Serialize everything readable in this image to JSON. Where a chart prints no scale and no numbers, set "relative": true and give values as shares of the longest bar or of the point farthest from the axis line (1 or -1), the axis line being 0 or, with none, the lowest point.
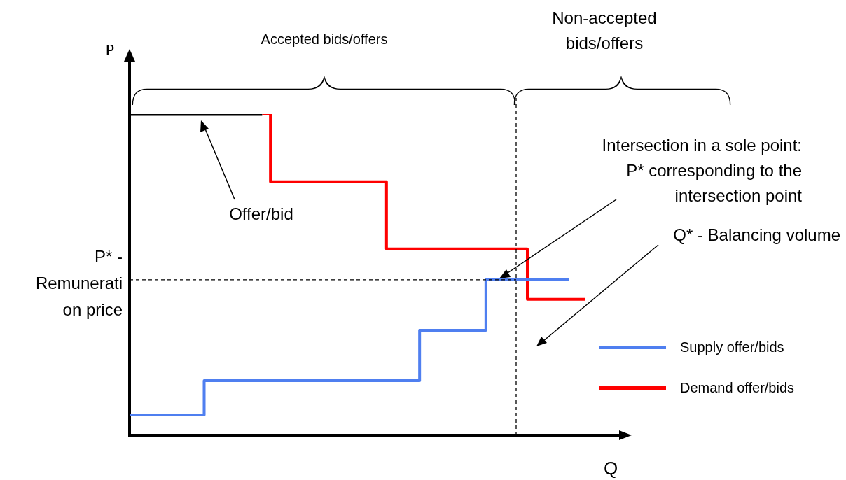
{
  "chart_data": {
    "type": "step",
    "relative": true,
    "xlabel": "Q",
    "ylabel": "P",
    "categories": [
      null,
      null,
      null,
      null,
      null,
      null,
      null,
      null,
      null,
      null,
      null,
      null,
      null,
      null,
      null,
      null,
      null,
      null,
      null,
      null,
      null,
      null,
      null,
      null,
      null,
      null,
      null,
      null,
      null,
      null,
      null,
      null,
      null,
      null,
      null,
      null,
      null,
      null,
      null,
      null,
      null,
      null,
      null,
      null,
      null,
      null,
      null,
      null,
      null,
      null,
      null,
      null,
      null,
      null,
      null,
      null,
      null,
      null,
      null,
      null,
      null
    ],
    "series": [
      {
        "color": "#000000",
        "values": [
          1,
          1,
          1,
          1,
          1,
          1,
          1,
          1,
          1,
          1,
          1,
          1,
          1,
          1,
          1,
          1,
          1,
          null,
          null,
          null,
          null,
          null,
          null,
          null,
          null,
          null,
          null,
          null,
          null,
          null,
          null,
          null,
          null,
          null,
          null,
          null,
          null,
          null,
          null,
          null,
          null,
          null,
          null,
          null,
          null,
          null,
          null,
          null,
          null,
          null,
          null,
          null,
          null,
          null,
          null,
          null,
          null,
          null,
          null,
          null,
          null
        ]
      },
      {
        "name": "Supply offer/bids",
        "color": "#4f7ff0",
        "values": [
          0.063,
          0.063,
          0.063,
          0.063,
          0.063,
          0.063,
          0.063,
          0.063,
          0.063,
          0.17,
          0.17,
          0.17,
          0.17,
          0.17,
          0.17,
          0.17,
          0.17,
          0.17,
          0.17,
          0.17,
          0.17,
          0.17,
          0.17,
          0.17,
          0.17,
          0.17,
          0.17,
          0.17,
          0.17,
          0.17,
          0.17,
          0.17,
          0.17,
          0.17,
          0.17,
          0.327,
          0.327,
          0.327,
          0.327,
          0.327,
          0.327,
          0.327,
          0.327,
          0.484,
          0.484,
          0.484,
          0.484,
          0.484,
          0.484,
          0.484,
          0.484,
          0.484,
          0.484,
          0.484,
          null,
          null,
          null,
          null,
          null,
          null,
          null
        ]
      },
      {
        "name": "Demand offer/bids",
        "color": "#ff0000",
        "values": [
          null,
          null,
          null,
          null,
          null,
          null,
          null,
          null,
          null,
          null,
          null,
          null,
          null,
          null,
          null,
          null,
          1,
          0.789,
          0.789,
          0.789,
          0.789,
          0.789,
          0.789,
          0.789,
          0.789,
          0.789,
          0.789,
          0.789,
          0.789,
          0.789,
          0.789,
          0.58,
          0.58,
          0.58,
          0.58,
          0.58,
          0.58,
          0.58,
          0.58,
          0.58,
          0.58,
          0.58,
          0.58,
          0.58,
          0.58,
          0.58,
          0.58,
          0.58,
          0.423,
          0.423,
          0.423,
          0.423,
          0.423,
          0.423,
          0.423,
          0.423,
          null,
          null,
          null,
          null,
          null
        ]
      }
    ],
    "ref_lines": [
      {
        "axis": "y",
        "value": 0.484,
        "label": "P* - Remunerati on price",
        "line_style": "dashed",
        "color": "#000000"
      }
    ],
    "annotations": [
      "Accepted bids/offers",
      "Non-accepted bids/offers",
      "Intersection in a sole point: P* corresponding to the intersection point",
      "Q* - Balancing volume",
      "Offer/bid"
    ],
    "legend": "bottom right",
    "grid": false,
    "marker": "none"
  }
}
